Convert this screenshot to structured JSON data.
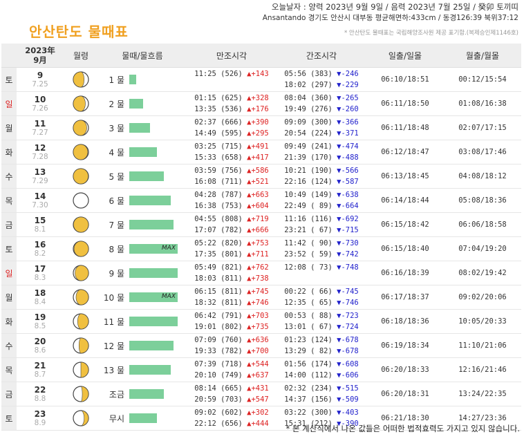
{
  "page": {
    "title": "안산탄도  물때표",
    "header_line1": "오늘날자 : 양력 2023년 9월 9일 / 음력 2023년 7월 25일 / 癸卯 토끼띠",
    "header_line2": "Ansantando 경기도 안산시 대부동 평균해면하:433cm / 동경126:39 북위37:12",
    "header_line3": "* 안산탄도 물때표는 국립해양조사원 제공 표기함.(복제승인제1146호)",
    "footnote": "* 본 계산식에서 나온 값들은 어떠한 법적효력도 가지고 있지 않습니다.",
    "colors": {
      "title": "#f0a020",
      "rise": "#dd2222",
      "fall": "#2222cc",
      "bar": "#7ccf9a",
      "moon": "#f0c040"
    }
  },
  "columns": {
    "date_year": "2023年",
    "date_month": "9月",
    "moon": "월령",
    "flow": "물때/물흐름",
    "high": "만조시각",
    "low": "간조시각",
    "sun": "일출/일몰",
    "moonrise": "월출/월몰"
  },
  "rows": [
    {
      "dow": "토",
      "sunday": false,
      "day": "9",
      "lunar": "7.25",
      "phase": 0.82,
      "flow_name": "1 물",
      "flow_pct": 14,
      "max": false,
      "high": [
        {
          "t": "11:25 (526)",
          "s": "▲",
          "d": "+143"
        },
        {
          "t": "",
          "s": "",
          "d": ""
        }
      ],
      "low": [
        {
          "t": "05:56 (383)",
          "s": "▼",
          "d": "-246"
        },
        {
          "t": "18:02 (297)",
          "s": "▼",
          "d": "-229"
        }
      ],
      "sun": "06:10/18:51",
      "moonrise": "00:12/15:54"
    },
    {
      "dow": "일",
      "sunday": true,
      "day": "10",
      "lunar": "7.26",
      "phase": 0.85,
      "flow_name": "2 물",
      "flow_pct": 28,
      "max": false,
      "high": [
        {
          "t": "01:15 (625)",
          "s": "▲",
          "d": "+328"
        },
        {
          "t": "13:35 (536)",
          "s": "▲",
          "d": "+176"
        }
      ],
      "low": [
        {
          "t": "08:04 (360)",
          "s": "▼",
          "d": "-265"
        },
        {
          "t": "19:49 (276)",
          "s": "▼",
          "d": "-260"
        }
      ],
      "sun": "06:11/18:50",
      "moonrise": "01:08/16:38"
    },
    {
      "dow": "월",
      "sunday": false,
      "day": "11",
      "lunar": "7.27",
      "phase": 0.89,
      "flow_name": "3 물",
      "flow_pct": 43,
      "max": false,
      "high": [
        {
          "t": "02:37 (666)",
          "s": "▲",
          "d": "+390"
        },
        {
          "t": "14:49 (595)",
          "s": "▲",
          "d": "+295"
        }
      ],
      "low": [
        {
          "t": "09:09 (300)",
          "s": "▼",
          "d": "-366"
        },
        {
          "t": "20:54 (224)",
          "s": "▼",
          "d": "-371"
        }
      ],
      "sun": "06:11/18:48",
      "moonrise": "02:07/17:15"
    },
    {
      "dow": "화",
      "sunday": false,
      "day": "12",
      "lunar": "7.28",
      "phase": 0.93,
      "flow_name": "4 물",
      "flow_pct": 57,
      "max": false,
      "high": [
        {
          "t": "03:25 (715)",
          "s": "▲",
          "d": "+491"
        },
        {
          "t": "15:33 (658)",
          "s": "▲",
          "d": "+417"
        }
      ],
      "low": [
        {
          "t": "09:49 (241)",
          "s": "▼",
          "d": "-474"
        },
        {
          "t": "21:39 (170)",
          "s": "▼",
          "d": "-488"
        }
      ],
      "sun": "06:12/18:47",
      "moonrise": "03:08/17:46"
    },
    {
      "dow": "수",
      "sunday": false,
      "day": "13",
      "lunar": "7.29",
      "phase": 0.96,
      "flow_name": "5 물",
      "flow_pct": 71,
      "max": false,
      "high": [
        {
          "t": "03:59 (756)",
          "s": "▲",
          "d": "+586"
        },
        {
          "t": "16:08 (711)",
          "s": "▲",
          "d": "+521"
        }
      ],
      "low": [
        {
          "t": "10:21 (190)",
          "s": "▼",
          "d": "-566"
        },
        {
          "t": "22:16 (124)",
          "s": "▼",
          "d": "-587"
        }
      ],
      "sun": "06:13/18:45",
      "moonrise": "04:08/18:12"
    },
    {
      "dow": "목",
      "sunday": false,
      "day": "14",
      "lunar": "7.30",
      "phase": 0.0,
      "flow_name": "6 물",
      "flow_pct": 85,
      "max": false,
      "high": [
        {
          "t": "04:28 (787)",
          "s": "▲",
          "d": "+663"
        },
        {
          "t": "16:38 (753)",
          "s": "▲",
          "d": "+604"
        }
      ],
      "low": [
        {
          "t": "10:49 (149)",
          "s": "▼",
          "d": "-638"
        },
        {
          "t": "22:49 ( 89)",
          "s": "▼",
          "d": "-664"
        }
      ],
      "sun": "06:14/18:44",
      "moonrise": "05:08/18:36"
    },
    {
      "dow": "금",
      "sunday": false,
      "day": "15",
      "lunar": "8.1",
      "phase": 0.04,
      "flow_name": "7 물",
      "flow_pct": 92,
      "max": false,
      "high": [
        {
          "t": "04:55 (808)",
          "s": "▲",
          "d": "+719"
        },
        {
          "t": "17:07 (782)",
          "s": "▲",
          "d": "+666"
        }
      ],
      "low": [
        {
          "t": "11:16 (116)",
          "s": "▼",
          "d": "-692"
        },
        {
          "t": "23:21 ( 67)",
          "s": "▼",
          "d": "-715"
        }
      ],
      "sun": "06:15/18:42",
      "moonrise": "06:06/18:58"
    },
    {
      "dow": "토",
      "sunday": false,
      "day": "16",
      "lunar": "8.2",
      "phase": 0.07,
      "flow_name": "8 물",
      "flow_pct": 100,
      "max": true,
      "high": [
        {
          "t": "05:22 (820)",
          "s": "▲",
          "d": "+753"
        },
        {
          "t": "17:35 (801)",
          "s": "▲",
          "d": "+711"
        }
      ],
      "low": [
        {
          "t": "11:42 ( 90)",
          "s": "▼",
          "d": "-730"
        },
        {
          "t": "23:52 ( 59)",
          "s": "▼",
          "d": "-742"
        }
      ],
      "sun": "06:15/18:40",
      "moonrise": "07:04/19:20"
    },
    {
      "dow": "일",
      "sunday": true,
      "day": "17",
      "lunar": "8.3",
      "phase": 0.11,
      "flow_name": "9 물",
      "flow_pct": 100,
      "max": false,
      "high": [
        {
          "t": "05:49 (821)",
          "s": "▲",
          "d": "+762"
        },
        {
          "t": "18:03 (811)",
          "s": "▲",
          "d": "+738"
        }
      ],
      "low": [
        {
          "t": "12:08 ( 73)",
          "s": "▼",
          "d": "-748"
        },
        {
          "t": "",
          "s": "",
          "d": ""
        }
      ],
      "sun": "06:16/18:39",
      "moonrise": "08:02/19:42"
    },
    {
      "dow": "월",
      "sunday": false,
      "day": "18",
      "lunar": "8.4",
      "phase": 0.14,
      "flow_name": "10 물",
      "flow_pct": 100,
      "max": true,
      "high": [
        {
          "t": "06:15 (811)",
          "s": "▲",
          "d": "+745"
        },
        {
          "t": "18:32 (811)",
          "s": "▲",
          "d": "+746"
        }
      ],
      "low": [
        {
          "t": "00:22 ( 66)",
          "s": "▼",
          "d": "-745"
        },
        {
          "t": "12:35 ( 65)",
          "s": "▼",
          "d": "-746"
        }
      ],
      "sun": "06:17/18:37",
      "moonrise": "09:02/20:06"
    },
    {
      "dow": "화",
      "sunday": false,
      "day": "19",
      "lunar": "8.5",
      "phase": 0.18,
      "flow_name": "11 물",
      "flow_pct": 100,
      "max": false,
      "high": [
        {
          "t": "06:42 (791)",
          "s": "▲",
          "d": "+703"
        },
        {
          "t": "19:01 (802)",
          "s": "▲",
          "d": "+735"
        }
      ],
      "low": [
        {
          "t": "00:53 ( 88)",
          "s": "▼",
          "d": "-723"
        },
        {
          "t": "13:01 ( 67)",
          "s": "▼",
          "d": "-724"
        }
      ],
      "sun": "06:18/18:36",
      "moonrise": "10:05/20:33"
    },
    {
      "dow": "수",
      "sunday": false,
      "day": "20",
      "lunar": "8.6",
      "phase": 0.21,
      "flow_name": "12 물",
      "flow_pct": 92,
      "max": false,
      "high": [
        {
          "t": "07:09 (760)",
          "s": "▲",
          "d": "+636"
        },
        {
          "t": "19:33 (782)",
          "s": "▲",
          "d": "+700"
        }
      ],
      "low": [
        {
          "t": "01:23 (124)",
          "s": "▼",
          "d": "-678"
        },
        {
          "t": "13:29 ( 82)",
          "s": "▼",
          "d": "-678"
        }
      ],
      "sun": "06:19/18:34",
      "moonrise": "11:10/21:06"
    },
    {
      "dow": "목",
      "sunday": false,
      "day": "21",
      "lunar": "8.7",
      "phase": 0.25,
      "flow_name": "13 물",
      "flow_pct": 85,
      "max": false,
      "high": [
        {
          "t": "07:39 (718)",
          "s": "▲",
          "d": "+544"
        },
        {
          "t": "20:10 (749)",
          "s": "▲",
          "d": "+637"
        }
      ],
      "low": [
        {
          "t": "01:56 (174)",
          "s": "▼",
          "d": "-608"
        },
        {
          "t": "14:00 (112)",
          "s": "▼",
          "d": "-606"
        }
      ],
      "sun": "06:20/18:33",
      "moonrise": "12:16/21:46"
    },
    {
      "dow": "금",
      "sunday": false,
      "day": "22",
      "lunar": "8.8",
      "phase": 0.28,
      "flow_name": "조금",
      "flow_pct": 71,
      "max": false,
      "high": [
        {
          "t": "08:14 (665)",
          "s": "▲",
          "d": "+431"
        },
        {
          "t": "20:59 (703)",
          "s": "▲",
          "d": "+547"
        }
      ],
      "low": [
        {
          "t": "02:32 (234)",
          "s": "▼",
          "d": "-515"
        },
        {
          "t": "14:37 (156)",
          "s": "▼",
          "d": "-509"
        }
      ],
      "sun": "06:20/18:31",
      "moonrise": "13:24/22:35"
    },
    {
      "dow": "토",
      "sunday": false,
      "day": "23",
      "lunar": "8.9",
      "phase": 0.32,
      "flow_name": "무시",
      "flow_pct": 57,
      "max": false,
      "high": [
        {
          "t": "09:02 (602)",
          "s": "▲",
          "d": "+302"
        },
        {
          "t": "22:12 (656)",
          "s": "▲",
          "d": "+444"
        }
      ],
      "low": [
        {
          "t": "03:22 (300)",
          "s": "▼",
          "d": "-403"
        },
        {
          "t": "15:31 (212)",
          "s": "▼",
          "d": "-390"
        }
      ],
      "sun": "06:21/18:30",
      "moonrise": "14:27/23:36"
    }
  ]
}
